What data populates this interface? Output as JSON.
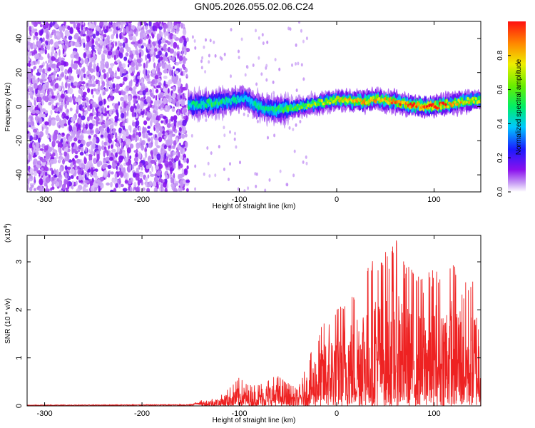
{
  "figure_title": "GN05.2026.055.02.06.C24",
  "chart_data": [
    {
      "type": "heatmap",
      "title": "GN05.2026.055.02.06.C24",
      "xlabel": "Height of straight line (km)",
      "ylabel": "Frequency (Hz)",
      "xlim": [
        -318,
        148
      ],
      "ylim": [
        -50,
        50
      ],
      "x_ticks": [
        -300,
        -200,
        -100,
        0,
        100
      ],
      "y_ticks": [
        -40,
        -20,
        0,
        20,
        40
      ],
      "noise_region": {
        "x_from": -318,
        "x_to": -153
      },
      "signal_ridge": [
        {
          "x": -150,
          "freq": 1,
          "amp": 0.45
        },
        {
          "x": -130,
          "freq": 2,
          "amp": 0.5
        },
        {
          "x": -110,
          "freq": 3,
          "amp": 0.45
        },
        {
          "x": -95,
          "freq": 5,
          "amp": 0.4
        },
        {
          "x": -80,
          "freq": 0,
          "amp": 0.45
        },
        {
          "x": -65,
          "freq": -2,
          "amp": 0.5
        },
        {
          "x": -50,
          "freq": -1,
          "amp": 0.55
        },
        {
          "x": -35,
          "freq": 0,
          "amp": 0.6
        },
        {
          "x": -20,
          "freq": 2,
          "amp": 0.65
        },
        {
          "x": 0,
          "freq": 4,
          "amp": 0.75
        },
        {
          "x": 20,
          "freq": 3,
          "amp": 0.8
        },
        {
          "x": 40,
          "freq": 4,
          "amp": 0.8
        },
        {
          "x": 60,
          "freq": 3,
          "amp": 0.85
        },
        {
          "x": 75,
          "freq": 1,
          "amp": 0.9
        },
        {
          "x": 95,
          "freq": 0,
          "amp": 1.0
        },
        {
          "x": 110,
          "freq": 1,
          "amp": 0.9
        },
        {
          "x": 130,
          "freq": 3,
          "amp": 0.75
        },
        {
          "x": 148,
          "freq": 4,
          "amp": 0.7
        }
      ],
      "colorbar": {
        "label": "Normalized spectral amplitude",
        "range": [
          0,
          1
        ],
        "ticks": [
          "0.0",
          "0.2",
          "0.4",
          "0.6",
          "0.8"
        ],
        "tick_values": [
          0.0,
          0.2,
          0.4,
          0.6,
          0.8
        ]
      }
    },
    {
      "type": "line",
      "xlabel": "Height of straight line (km)",
      "ylabel": "SNR (10 * v/v)",
      "y_scale_label": "(x10",
      "y_scale_exp": "4",
      "y_scale_close": ")",
      "xlim": [
        -318,
        148
      ],
      "ylim": [
        0,
        3.55
      ],
      "x_ticks": [
        -300,
        -200,
        -100,
        0,
        100
      ],
      "y_ticks": [
        0,
        1,
        2,
        3
      ],
      "color": "#ee2222",
      "envelope": [
        {
          "x": -318,
          "max": 0.02
        },
        {
          "x": -150,
          "max": 0.03
        },
        {
          "x": -135,
          "max": 0.15
        },
        {
          "x": -120,
          "max": 0.2
        },
        {
          "x": -110,
          "max": 0.4
        },
        {
          "x": -100,
          "max": 0.6
        },
        {
          "x": -90,
          "max": 0.45
        },
        {
          "x": -80,
          "max": 0.5
        },
        {
          "x": -70,
          "max": 0.6
        },
        {
          "x": -60,
          "max": 0.65
        },
        {
          "x": -50,
          "max": 0.5
        },
        {
          "x": -40,
          "max": 0.35
        },
        {
          "x": -30,
          "max": 0.9
        },
        {
          "x": -20,
          "max": 1.5
        },
        {
          "x": -10,
          "max": 1.9
        },
        {
          "x": 0,
          "max": 2.1
        },
        {
          "x": 10,
          "max": 2.4
        },
        {
          "x": 20,
          "max": 2.6
        },
        {
          "x": 30,
          "max": 3.0
        },
        {
          "x": 40,
          "max": 3.2
        },
        {
          "x": 50,
          "max": 3.3
        },
        {
          "x": 60,
          "max": 3.5
        },
        {
          "x": 70,
          "max": 3.1
        },
        {
          "x": 80,
          "max": 2.9
        },
        {
          "x": 90,
          "max": 2.7
        },
        {
          "x": 100,
          "max": 3.0
        },
        {
          "x": 110,
          "max": 2.8
        },
        {
          "x": 120,
          "max": 3.1
        },
        {
          "x": 130,
          "max": 2.6
        },
        {
          "x": 140,
          "max": 2.7
        },
        {
          "x": 148,
          "max": 2.5
        }
      ]
    }
  ]
}
